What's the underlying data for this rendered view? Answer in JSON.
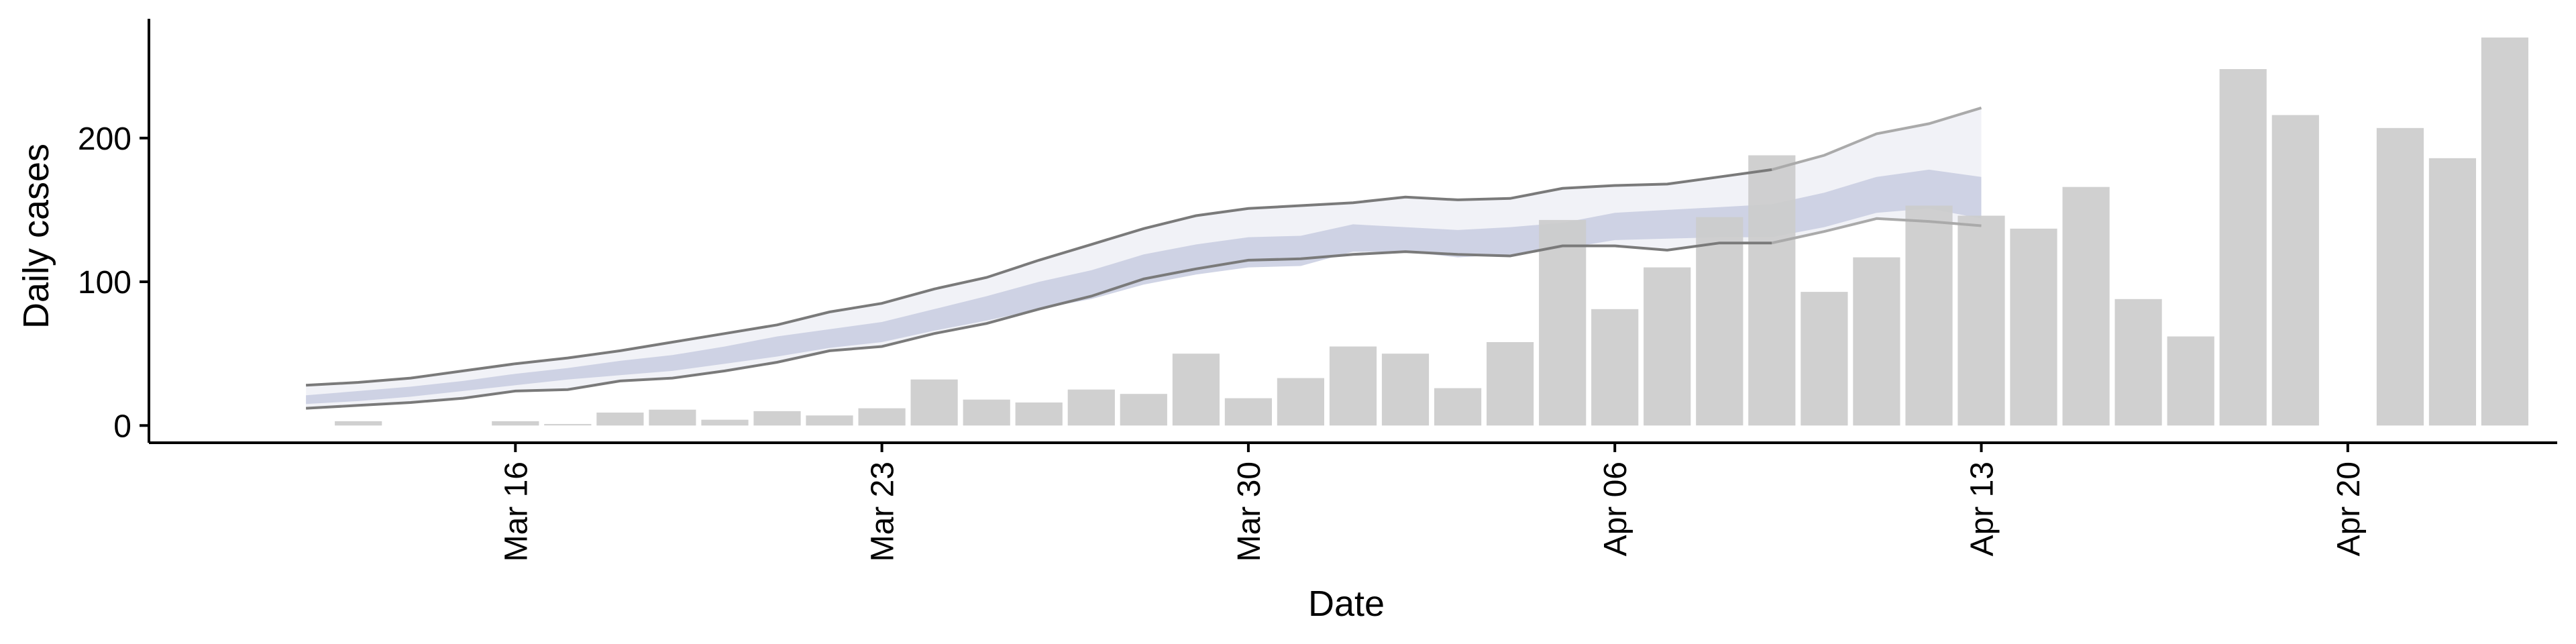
{
  "chart_data": {
    "type": "bar",
    "xlabel": "Date",
    "ylabel": "Daily cases",
    "ylim": [
      -12,
      283
    ],
    "yticks": [
      0,
      100,
      200
    ],
    "x_ticks": [
      {
        "date": "2020-03-16",
        "label": "Mar 16"
      },
      {
        "date": "2020-03-23",
        "label": "Mar 23"
      },
      {
        "date": "2020-03-30",
        "label": "Mar 30"
      },
      {
        "date": "2020-04-06",
        "label": "Apr 06"
      },
      {
        "date": "2020-04-13",
        "label": "Apr 13"
      },
      {
        "date": "2020-04-20",
        "label": "Apr 20"
      }
    ],
    "xlim": [
      "2020-03-09",
      "2020-04-24"
    ],
    "grid": false,
    "colors": {
      "bars": "#cccccc",
      "ribbon_outer": "#eef0f6",
      "ribbon_inner": "#c8cde0",
      "bound_lines": "#7a7a7a",
      "bound_lines_late": "#aaaaaa"
    },
    "bars": [
      {
        "date": "2020-03-13",
        "value": 3
      },
      {
        "date": "2020-03-16",
        "value": 3
      },
      {
        "date": "2020-03-17",
        "value": 1
      },
      {
        "date": "2020-03-18",
        "value": 9
      },
      {
        "date": "2020-03-19",
        "value": 11
      },
      {
        "date": "2020-03-20",
        "value": 4
      },
      {
        "date": "2020-03-21",
        "value": 10
      },
      {
        "date": "2020-03-22",
        "value": 7
      },
      {
        "date": "2020-03-23",
        "value": 12
      },
      {
        "date": "2020-03-24",
        "value": 32
      },
      {
        "date": "2020-03-25",
        "value": 18
      },
      {
        "date": "2020-03-26",
        "value": 16
      },
      {
        "date": "2020-03-27",
        "value": 25
      },
      {
        "date": "2020-03-28",
        "value": 22
      },
      {
        "date": "2020-03-29",
        "value": 50
      },
      {
        "date": "2020-03-30",
        "value": 19
      },
      {
        "date": "2020-03-31",
        "value": 33
      },
      {
        "date": "2020-04-01",
        "value": 55
      },
      {
        "date": "2020-04-02",
        "value": 50
      },
      {
        "date": "2020-04-03",
        "value": 26
      },
      {
        "date": "2020-04-04",
        "value": 58
      },
      {
        "date": "2020-04-05",
        "value": 143
      },
      {
        "date": "2020-04-06",
        "value": 81
      },
      {
        "date": "2020-04-07",
        "value": 110
      },
      {
        "date": "2020-04-08",
        "value": 145
      },
      {
        "date": "2020-04-09",
        "value": 188
      },
      {
        "date": "2020-04-10",
        "value": 93
      },
      {
        "date": "2020-04-11",
        "value": 117
      },
      {
        "date": "2020-04-12",
        "value": 153
      },
      {
        "date": "2020-04-13",
        "value": 146
      },
      {
        "date": "2020-04-14",
        "value": 137
      },
      {
        "date": "2020-04-15",
        "value": 166
      },
      {
        "date": "2020-04-16",
        "value": 88
      },
      {
        "date": "2020-04-17",
        "value": 62
      },
      {
        "date": "2020-04-18",
        "value": 248
      },
      {
        "date": "2020-04-19",
        "value": 216
      },
      {
        "date": "2020-04-21",
        "value": 207
      },
      {
        "date": "2020-04-22",
        "value": 186
      },
      {
        "date": "2020-04-23",
        "value": 270
      }
    ],
    "estimate": {
      "dates": [
        "2020-03-12",
        "2020-03-13",
        "2020-03-14",
        "2020-03-15",
        "2020-03-16",
        "2020-03-17",
        "2020-03-18",
        "2020-03-19",
        "2020-03-20",
        "2020-03-21",
        "2020-03-22",
        "2020-03-23",
        "2020-03-24",
        "2020-03-25",
        "2020-03-26",
        "2020-03-27",
        "2020-03-28",
        "2020-03-29",
        "2020-03-30",
        "2020-03-31",
        "2020-04-01",
        "2020-04-02",
        "2020-04-03",
        "2020-04-04",
        "2020-04-05",
        "2020-04-06",
        "2020-04-07",
        "2020-04-08",
        "2020-04-09",
        "2020-04-10",
        "2020-04-11",
        "2020-04-12",
        "2020-04-13"
      ],
      "upper": [
        28,
        30,
        33,
        38,
        43,
        47,
        52,
        58,
        64,
        70,
        79,
        85,
        95,
        103,
        115,
        126,
        137,
        146,
        151,
        153,
        155,
        159,
        157,
        158,
        165,
        167,
        168,
        173,
        178,
        188,
        203,
        210,
        221
      ],
      "lower": [
        12,
        14,
        16,
        19,
        24,
        25,
        31,
        33,
        38,
        44,
        52,
        55,
        64,
        71,
        81,
        90,
        102,
        109,
        115,
        116,
        119,
        121,
        119,
        118,
        125,
        125,
        122,
        127,
        127,
        135,
        144,
        142,
        139
      ],
      "inner_upper": [
        21,
        24,
        27,
        31,
        36,
        40,
        45,
        49,
        55,
        62,
        67,
        72,
        81,
        90,
        100,
        108,
        119,
        126,
        131,
        132,
        140,
        138,
        136,
        138,
        141,
        148,
        150,
        152,
        154,
        162,
        173,
        178,
        173
      ],
      "inner_lower": [
        15,
        17,
        20,
        24,
        28,
        32,
        35,
        38,
        43,
        48,
        54,
        58,
        66,
        73,
        81,
        88,
        98,
        105,
        110,
        111,
        121,
        121,
        117,
        119,
        123,
        129,
        130,
        131,
        131,
        138,
        148,
        151,
        144
      ],
      "late_start": "2020-04-09"
    }
  }
}
